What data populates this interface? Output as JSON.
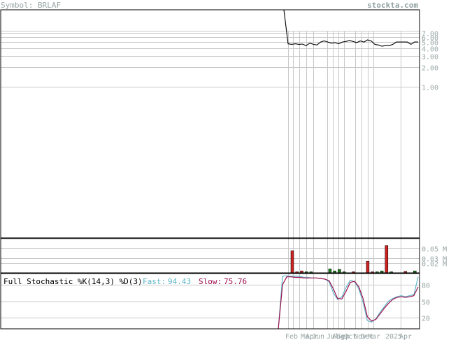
{
  "header": {
    "symbol_label": "Symbol: BRLAF",
    "brand": "stockta.com"
  },
  "colors": {
    "grid": "#c8c8c8",
    "frame": "#000000",
    "price_line": "#000000",
    "volume_up": "#1c7a1c",
    "volume_down": "#cc2222",
    "fast_line": "#5fb8c8",
    "slow_line": "#a01050",
    "tick_text": "#9aa7a7"
  },
  "stochastic": {
    "title": "Full Stochastic %K(14,3) %D(3)",
    "fast_label": "Fast:",
    "fast_value": "94.43",
    "slow_label": "Slow:",
    "slow_value": "75.76"
  },
  "chart_data": [
    {
      "type": "line",
      "name": "price",
      "scale": "log",
      "y_ticks": [
        "7.00",
        "6.00",
        "5.00",
        "4.00",
        "3.00",
        "2.00",
        "1.00"
      ],
      "y_tick_values": [
        7,
        6,
        5,
        4,
        3,
        2,
        1
      ],
      "ylim": [
        0.45,
        12
      ],
      "x_labels": [
        "Feb",
        "Mar",
        "Apr",
        "Jun",
        "Jul",
        "Aug",
        "Sep",
        "Oct",
        "Nov",
        "Dec",
        "Mar",
        "2025",
        "Apr"
      ],
      "values": [
        12,
        4.7,
        4.6,
        4.7,
        4.6,
        4.65,
        4.4,
        4.8,
        4.6,
        4.5,
        5.0,
        5.2,
        5.0,
        4.8,
        4.9,
        4.7,
        5.0,
        5.1,
        5.3,
        5.1,
        4.9,
        5.2,
        5.0,
        5.4,
        5.2,
        4.6,
        4.5,
        4.3,
        4.4,
        4.4,
        4.6,
        5.0,
        5.0,
        5.0,
        5.0,
        4.6,
        5.0,
        5.0
      ]
    },
    {
      "type": "bar",
      "name": "volume",
      "y_ticks": [
        "0.05 M",
        "0.03 M",
        "0.02 M"
      ],
      "y_tick_values": [
        0.05,
        0.03,
        0.02
      ],
      "ylim": [
        0,
        0.07
      ],
      "bars": [
        {
          "value": 0.045,
          "dir": "down"
        },
        {
          "value": 0.002,
          "dir": "down"
        },
        {
          "value": 0.004,
          "dir": "down"
        },
        {
          "value": 0.001,
          "dir": "up"
        },
        {
          "value": 0.001,
          "dir": "up"
        },
        {
          "value": 0.0,
          "dir": "up"
        },
        {
          "value": 0.0,
          "dir": "up"
        },
        {
          "value": 0.0,
          "dir": "up"
        },
        {
          "value": 0.008,
          "dir": "up"
        },
        {
          "value": 0.004,
          "dir": "up"
        },
        {
          "value": 0.007,
          "dir": "up"
        },
        {
          "value": 0.001,
          "dir": "up"
        },
        {
          "value": 0.0,
          "dir": "up"
        },
        {
          "value": 0.001,
          "dir": "down"
        },
        {
          "value": 0.0,
          "dir": "up"
        },
        {
          "value": 0.0,
          "dir": "up"
        },
        {
          "value": 0.024,
          "dir": "down"
        },
        {
          "value": 0.001,
          "dir": "down"
        },
        {
          "value": 0.001,
          "dir": "up"
        },
        {
          "value": 0.004,
          "dir": "up"
        },
        {
          "value": 0.056,
          "dir": "down"
        },
        {
          "value": 0.002,
          "dir": "up"
        },
        {
          "value": 0.0,
          "dir": "up"
        },
        {
          "value": 0.0,
          "dir": "up"
        },
        {
          "value": 0.003,
          "dir": "down"
        },
        {
          "value": 0.0,
          "dir": "up"
        },
        {
          "value": 0.004,
          "dir": "up"
        },
        {
          "value": 0.0,
          "dir": "up"
        }
      ]
    },
    {
      "type": "line",
      "name": "stochastic",
      "y_ticks": [
        "80",
        "50",
        "20"
      ],
      "y_tick_values": [
        80,
        50,
        20
      ],
      "ylim": [
        0,
        100
      ],
      "series": [
        {
          "name": "Fast",
          "values": [
            0,
            95,
            96,
            95,
            95,
            95,
            93,
            93,
            92,
            92,
            91,
            90,
            85,
            65,
            53,
            58,
            75,
            88,
            85,
            72,
            48,
            15,
            12,
            18,
            30,
            40,
            50,
            55,
            58,
            60,
            58,
            60,
            62,
            94
          ]
        },
        {
          "name": "Slow",
          "values": [
            0,
            80,
            94,
            94,
            93,
            93,
            92,
            92,
            92,
            92,
            91,
            90,
            87,
            72,
            55,
            54,
            68,
            84,
            86,
            76,
            55,
            22,
            14,
            17,
            27,
            37,
            46,
            53,
            57,
            58,
            57,
            58,
            60,
            76
          ]
        }
      ]
    }
  ]
}
